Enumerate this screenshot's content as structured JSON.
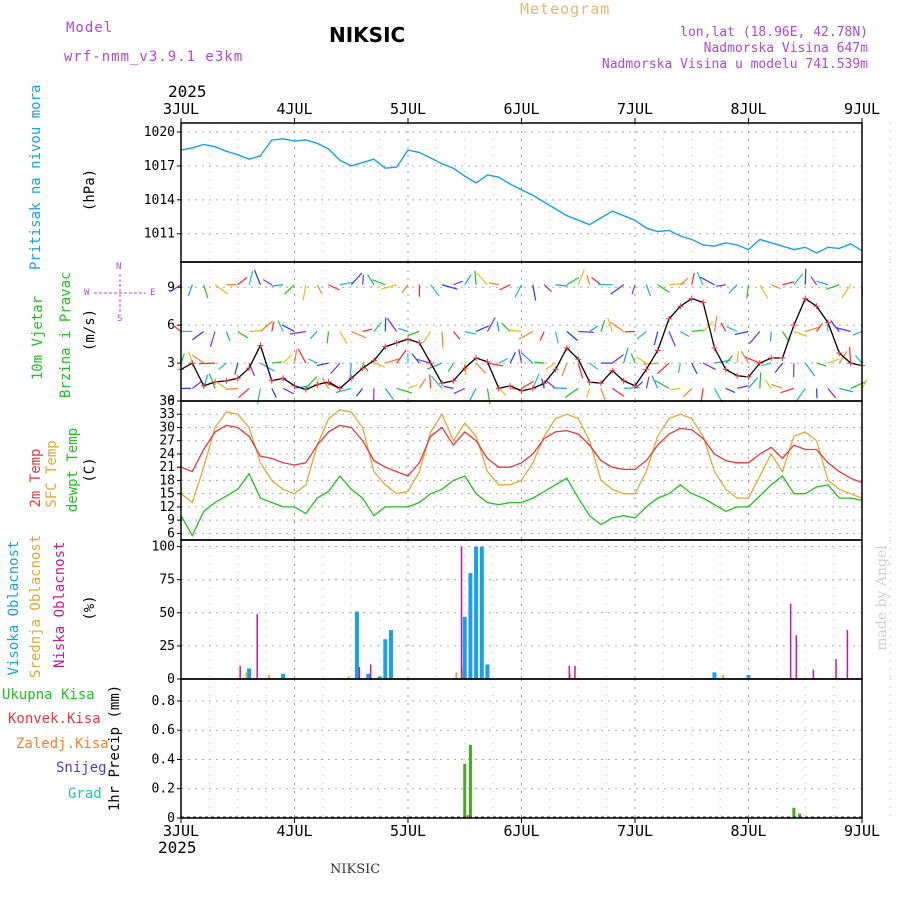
{
  "header": {
    "model_label": "Model",
    "model_name": "wrf-nmm_v3.9.1 e3km",
    "title": "NIKSIC",
    "meteogram": "Meteogram",
    "lonlat": "lon,lat (18.96E, 42.78N)",
    "elevation": "Nadmorska Visina 647m",
    "model_elevation": "Nadmorska Visina u modelu 741.539m",
    "year_top": "2025",
    "year_bottom": "2025",
    "footer": "NIKSIC",
    "watermark": "made by Angel"
  },
  "colors": {
    "pressure": "#1aa0e8",
    "temp2m": "#e83a3a",
    "sfc": "#e0a838",
    "dew": "#22c022",
    "high_cloud": "#1aa0e8",
    "mid_cloud": "#e0a838",
    "low_cloud": "#c8189a",
    "total_precip": "#44aa22",
    "conv_precip": "#e83a3a",
    "frozen": "#ff7f2a",
    "snow": "#4b3fd6",
    "hail": "#20c0b0"
  },
  "panels": {
    "pressure": {
      "label": "Pritisak na nivou mora",
      "unit": "(hPa)"
    },
    "wind": {
      "label1": "10m Vjetar",
      "label2": "Brzina i Pravac",
      "unit": "(m/s)",
      "compass_n": "N",
      "compass_s": "S",
      "compass_w": "W",
      "compass_e": "E"
    },
    "temp": {
      "label1": "2m Temp",
      "label2": "SFC Temp",
      "label3": "dewpt Temp",
      "unit": "(C)"
    },
    "cloud": {
      "label1": "Visoka Oblacnost",
      "label2": "Srednja Oblacnost",
      "label3": "Niska Oblacnost",
      "unit": "(%)"
    },
    "precip": {
      "label1": "Ukupna Kisa",
      "label2": "Konvek.Kisa",
      "label3": "Zaledj.Kisa",
      "label4": "Snijeg",
      "label5": "Grad",
      "unit": "1hr Precip (mm)"
    }
  },
  "chart_data": {
    "type": "line",
    "x_axis": {
      "labels": [
        "3JUL",
        "4JUL",
        "5JUL",
        "6JUL",
        "7JUL",
        "8JUL",
        "9JUL"
      ],
      "range_days": [
        0,
        6
      ]
    },
    "pressure": {
      "ylim": [
        1008.5,
        1020.8
      ],
      "yticks": [
        1011,
        1014,
        1017,
        1020
      ],
      "x": [
        0,
        0.1,
        0.2,
        0.3,
        0.4,
        0.5,
        0.6,
        0.7,
        0.8,
        0.9,
        1.0,
        1.1,
        1.2,
        1.3,
        1.4,
        1.5,
        1.6,
        1.7,
        1.8,
        1.9,
        2.0,
        2.1,
        2.2,
        2.3,
        2.4,
        2.5,
        2.6,
        2.7,
        2.8,
        2.9,
        3.0,
        3.1,
        3.2,
        3.3,
        3.4,
        3.5,
        3.6,
        3.7,
        3.8,
        3.9,
        4.0,
        4.1,
        4.2,
        4.3,
        4.4,
        4.5,
        4.6,
        4.7,
        4.8,
        4.9,
        5.0,
        5.1,
        5.2,
        5.3,
        5.4,
        5.5,
        5.6,
        5.7,
        5.8,
        5.9,
        6.0
      ],
      "values": [
        1018.4,
        1018.6,
        1018.9,
        1018.7,
        1018.3,
        1018.0,
        1017.6,
        1017.9,
        1019.3,
        1019.4,
        1019.2,
        1019.3,
        1019.0,
        1018.5,
        1017.5,
        1017.0,
        1017.3,
        1017.6,
        1016.8,
        1016.9,
        1018.4,
        1018.2,
        1017.7,
        1017.2,
        1016.8,
        1016.1,
        1015.5,
        1016.2,
        1016.0,
        1015.4,
        1014.9,
        1014.4,
        1013.8,
        1013.2,
        1012.6,
        1012.2,
        1011.8,
        1012.4,
        1013.0,
        1012.6,
        1012.2,
        1011.5,
        1011.2,
        1011.3,
        1010.8,
        1010.5,
        1010.0,
        1009.9,
        1010.2,
        1010.0,
        1009.6,
        1010.5,
        1010.2,
        1009.9,
        1009.6,
        1009.8,
        1009.3,
        1009.8,
        1009.7,
        1010.1,
        1009.5
      ]
    },
    "wind": {
      "ylim": [
        0,
        11
      ],
      "yticks": [
        0,
        3,
        6,
        9
      ],
      "speed_x": [
        0,
        0.1,
        0.2,
        0.3,
        0.4,
        0.5,
        0.6,
        0.7,
        0.8,
        0.9,
        1.0,
        1.1,
        1.2,
        1.3,
        1.4,
        1.5,
        1.6,
        1.7,
        1.8,
        1.9,
        2.0,
        2.1,
        2.2,
        2.3,
        2.4,
        2.5,
        2.6,
        2.7,
        2.8,
        2.9,
        3.0,
        3.1,
        3.2,
        3.3,
        3.4,
        3.5,
        3.6,
        3.7,
        3.8,
        3.9,
        4.0,
        4.1,
        4.2,
        4.3,
        4.4,
        4.5,
        4.6,
        4.7,
        4.8,
        4.9,
        5.0,
        5.1,
        5.2,
        5.3,
        5.4,
        5.5,
        5.6,
        5.7,
        5.8,
        5.9,
        6.0
      ],
      "speed": [
        2.5,
        3.0,
        1.2,
        1.5,
        1.6,
        1.8,
        2.6,
        4.4,
        1.6,
        1.8,
        1.2,
        0.9,
        1.3,
        1.5,
        1.0,
        1.8,
        2.6,
        3.2,
        4.3,
        4.6,
        4.9,
        4.6,
        3.0,
        1.4,
        1.6,
        2.6,
        3.4,
        3.1,
        1.0,
        1.2,
        0.8,
        1.0,
        1.4,
        2.5,
        4.2,
        3.3,
        1.5,
        1.4,
        2.4,
        1.6,
        1.2,
        2.5,
        4.0,
        6.5,
        7.5,
        8.1,
        7.8,
        4.2,
        2.5,
        2.0,
        1.9,
        3.0,
        3.4,
        3.4,
        6.0,
        8.1,
        7.5,
        6.2,
        3.8,
        3.0,
        2.8
      ]
    },
    "temperature": {
      "ylim": [
        4.5,
        36
      ],
      "yticks": [
        6,
        9,
        12,
        15,
        18,
        21,
        24,
        27,
        30,
        33,
        36
      ],
      "x": [
        0,
        0.1,
        0.2,
        0.3,
        0.4,
        0.5,
        0.6,
        0.7,
        0.8,
        0.9,
        1.0,
        1.1,
        1.2,
        1.3,
        1.4,
        1.5,
        1.6,
        1.7,
        1.8,
        1.9,
        2.0,
        2.1,
        2.2,
        2.3,
        2.4,
        2.5,
        2.6,
        2.7,
        2.8,
        2.9,
        3.0,
        3.1,
        3.2,
        3.3,
        3.4,
        3.5,
        3.6,
        3.7,
        3.8,
        3.9,
        4.0,
        4.1,
        4.2,
        4.3,
        4.4,
        4.5,
        4.6,
        4.7,
        4.8,
        4.9,
        5.0,
        5.1,
        5.2,
        5.3,
        5.4,
        5.5,
        5.6,
        5.7,
        5.8,
        5.9,
        6.0
      ],
      "t2m": [
        21,
        20,
        25,
        29,
        30.5,
        30,
        28,
        23.5,
        23,
        22,
        21.5,
        22,
        26,
        29,
        30.5,
        30,
        27,
        22.5,
        21,
        20,
        19,
        22,
        28,
        30,
        26,
        29,
        27,
        23,
        21,
        21,
        22,
        24,
        27.5,
        29,
        29.3,
        28.5,
        26,
        22.5,
        21,
        20.5,
        20.5,
        22.5,
        26,
        28.5,
        29.8,
        29.5,
        27.5,
        24,
        22.5,
        22,
        22,
        24,
        25.5,
        23,
        26,
        25,
        25,
        22,
        20,
        18.5,
        17.5
      ],
      "sfc": [
        15,
        13,
        21,
        30,
        33.5,
        33,
        30,
        22,
        18,
        16,
        15,
        17,
        26,
        32,
        34,
        33.5,
        30,
        20,
        17,
        15,
        15.5,
        20,
        29,
        33,
        27,
        31,
        28,
        20,
        17,
        17,
        18,
        22,
        28,
        32,
        33,
        32,
        27,
        18,
        16,
        15,
        15,
        20,
        28,
        32,
        33,
        32,
        28,
        20,
        16,
        14,
        14,
        19,
        24,
        20,
        28,
        29,
        27,
        18,
        16,
        15,
        14
      ],
      "dew": [
        10,
        5.5,
        11,
        13,
        14.5,
        16,
        19.5,
        14,
        13,
        12,
        12,
        10.5,
        14,
        15.5,
        19,
        16,
        14,
        10,
        12,
        12,
        12,
        13,
        15,
        16,
        18,
        19,
        15,
        13,
        12.5,
        13,
        13,
        14,
        15.5,
        17,
        18.5,
        14,
        10,
        8,
        9.5,
        10,
        9.5,
        12,
        14,
        15,
        17,
        15,
        14,
        12.5,
        11,
        12,
        12,
        14.5,
        17,
        19,
        15,
        15,
        16.5,
        17,
        14,
        14,
        13.5
      ]
    },
    "cloud": {
      "ylim": [
        0,
        105
      ],
      "yticks": [
        0,
        25,
        50,
        75,
        100
      ],
      "high": {
        "x": [
          0.6,
          0.9,
          1.55,
          1.55,
          1.65,
          1.75,
          1.8,
          1.85,
          2.5,
          2.55,
          2.6,
          2.65,
          2.7,
          4.7,
          5.0
        ],
        "values": [
          8,
          4,
          2,
          51,
          4,
          2,
          30,
          37,
          47,
          80,
          100,
          100,
          11,
          5,
          3
        ]
      },
      "mid": {
        "x": [
          0.55,
          0.75,
          1.45,
          2.4,
          2.45,
          3.4,
          4.75
        ],
        "values": [
          5,
          3,
          2,
          5,
          8,
          4,
          3
        ]
      },
      "low": {
        "x": [
          0.55,
          0.7,
          1.6,
          1.7,
          2.5,
          3.45,
          3.5,
          5.4,
          5.45,
          5.6,
          5.8,
          5.9
        ],
        "values": [
          10,
          49,
          9,
          11,
          100,
          10,
          10,
          57,
          33,
          7,
          15,
          37
        ]
      }
    },
    "precip": {
      "ylim": [
        0,
        0.95
      ],
      "yticks": [
        0,
        0.2,
        0.4,
        0.6,
        0.8
      ],
      "total": {
        "x": [
          2.5,
          2.55,
          5.4,
          5.45
        ],
        "values": [
          0.37,
          0.5,
          0.07,
          0.03
        ]
      },
      "conv": {
        "x": [
          2.5
        ],
        "values": [
          0.02
        ]
      }
    }
  }
}
